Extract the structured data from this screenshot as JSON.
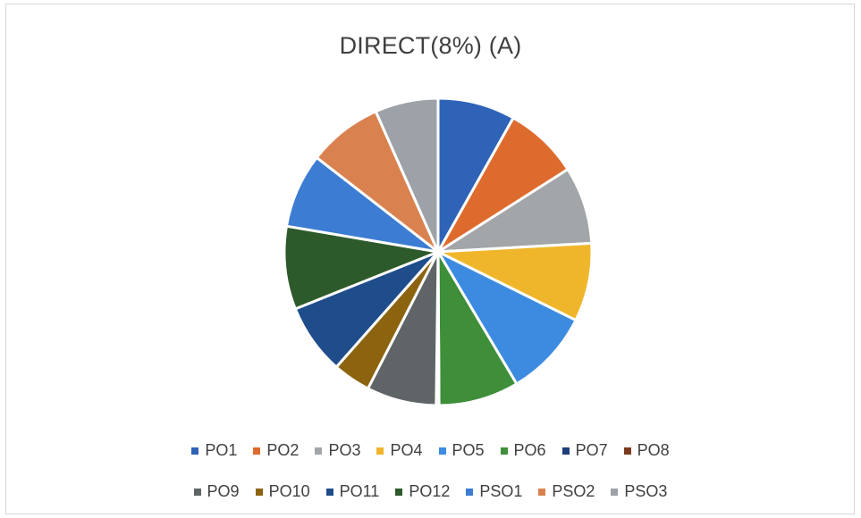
{
  "chart_data": {
    "type": "pie",
    "title": "DIRECT(8%) (A)",
    "legend_position": "bottom",
    "series": [
      {
        "name": "PO1",
        "value": 8.2,
        "color": "#2E63B8"
      },
      {
        "name": "PO2",
        "value": 7.9,
        "color": "#DE6B2E"
      },
      {
        "name": "PO3",
        "value": 8.2,
        "color": "#A3A6A8"
      },
      {
        "name": "PO4",
        "value": 8.3,
        "color": "#F0B62B"
      },
      {
        "name": "PO5",
        "value": 9.2,
        "color": "#3D8BE0"
      },
      {
        "name": "PO6",
        "value": 8.5,
        "color": "#3E8E3A"
      },
      {
        "name": "PO7",
        "value": 0.3,
        "color": "#1F3F7A"
      },
      {
        "name": "PO8",
        "value": 0.0,
        "color": "#7B3A1E"
      },
      {
        "name": "PO9",
        "value": 7.4,
        "color": "#5F6466"
      },
      {
        "name": "PO10",
        "value": 4.0,
        "color": "#8C6410"
      },
      {
        "name": "PO11",
        "value": 7.5,
        "color": "#1F4D8C"
      },
      {
        "name": "PO12",
        "value": 8.8,
        "color": "#2D5A2B"
      },
      {
        "name": "PSO1",
        "value": 7.9,
        "color": "#3C7CD3"
      },
      {
        "name": "PSO2",
        "value": 7.9,
        "color": "#D98250"
      },
      {
        "name": "PSO3",
        "value": 6.7,
        "color": "#9DA2A8"
      }
    ],
    "legend_rows": [
      [
        "PO1",
        "PO2",
        "PO3",
        "PO4",
        "PO5",
        "PO6",
        "PO7",
        "PO8"
      ],
      [
        "PO9",
        "PO10",
        "PO11",
        "PO12",
        "PSO1",
        "PSO2",
        "PSO3"
      ]
    ]
  }
}
